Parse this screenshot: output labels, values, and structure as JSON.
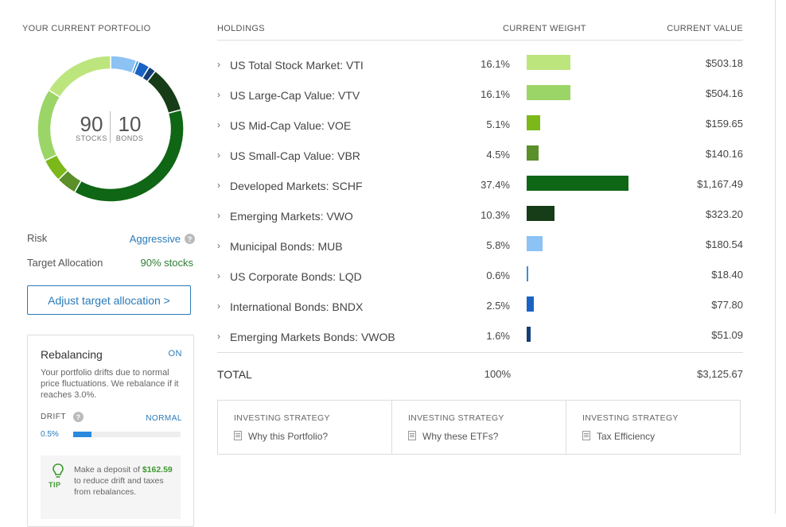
{
  "portfolio": {
    "section_title": "YOUR CURRENT PORTFOLIO",
    "stocks_pct": "90",
    "stocks_label": "STOCKS",
    "bonds_pct": "10",
    "bonds_label": "BONDS",
    "risk_label": "Risk",
    "risk_value": "Aggressive",
    "target_label": "Target Allocation",
    "target_value": "90% stocks",
    "adjust_button": "Adjust target allocation >",
    "accent_color": "#2a7ab8",
    "positive_color": "#2e7d32"
  },
  "rebalancing": {
    "title": "Rebalancing",
    "status": "ON",
    "description": "Your portfolio drifts due to normal price fluctuations. We rebalance if it reaches 3.0%.",
    "drift_label": "DRIFT",
    "drift_status": "NORMAL",
    "drift_value": "0.5%",
    "drift_fraction": 0.167,
    "tip_label": "TIP",
    "tip_pre": "Make a deposit of",
    "tip_amount": "$162.59",
    "tip_post": "to reduce drift and taxes from rebalances."
  },
  "holdings": {
    "col_name": "HOLDINGS",
    "col_weight": "CURRENT WEIGHT",
    "col_value": "CURRENT VALUE",
    "rows": [
      {
        "name": "US Total Stock Market: VTI",
        "weight": "16.1%",
        "pct": 16.1,
        "value": "$503.18",
        "color": "#bde57e"
      },
      {
        "name": "US Large-Cap Value: VTV",
        "weight": "16.1%",
        "pct": 16.1,
        "value": "$504.16",
        "color": "#9bd567"
      },
      {
        "name": "US Mid-Cap Value: VOE",
        "weight": "5.1%",
        "pct": 5.1,
        "value": "$159.65",
        "color": "#7cb81a"
      },
      {
        "name": "US Small-Cap Value: VBR",
        "weight": "4.5%",
        "pct": 4.5,
        "value": "$140.16",
        "color": "#5a8f2a"
      },
      {
        "name": "Developed Markets: SCHF",
        "weight": "37.4%",
        "pct": 37.4,
        "value": "$1,167.49",
        "color": "#0f6614"
      },
      {
        "name": "Emerging Markets: VWO",
        "weight": "10.3%",
        "pct": 10.3,
        "value": "$323.20",
        "color": "#163d17"
      },
      {
        "name": "Municipal Bonds: MUB",
        "weight": "5.8%",
        "pct": 5.8,
        "value": "$180.54",
        "color": "#8cc2f4"
      },
      {
        "name": "US Corporate Bonds: LQD",
        "weight": "0.6%",
        "pct": 0.6,
        "value": "$18.40",
        "color": "#3a8ee0"
      },
      {
        "name": "International Bonds: BNDX",
        "weight": "2.5%",
        "pct": 2.5,
        "value": "$77.80",
        "color": "#1a62c4"
      },
      {
        "name": "Emerging Markets Bonds: VWOB",
        "weight": "1.6%",
        "pct": 1.6,
        "value": "$51.09",
        "color": "#143f78"
      }
    ],
    "total_label": "TOTAL",
    "total_weight": "100%",
    "total_value": "$3,125.67"
  },
  "strategy": {
    "cards": [
      {
        "label": "INVESTING STRATEGY",
        "link": "Why this Portfolio?"
      },
      {
        "label": "INVESTING STRATEGY",
        "link": "Why these ETFs?"
      },
      {
        "label": "INVESTING STRATEGY",
        "link": "Tax Efficiency"
      }
    ]
  }
}
